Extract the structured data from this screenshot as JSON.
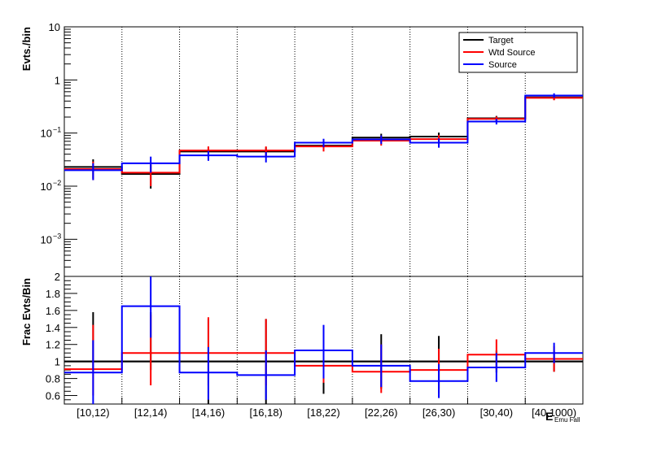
{
  "chart_data": [
    {
      "type": "line",
      "panel": "top",
      "ylabel": "Evts./bin",
      "yscale": "log",
      "ylim": [
        0.0002,
        10
      ],
      "y_ticks": [
        {
          "v": 10,
          "label": "10"
        },
        {
          "v": 1,
          "label": "1"
        },
        {
          "v": 0.1,
          "label": "10",
          "exp": "−1"
        },
        {
          "v": 0.01,
          "label": "10",
          "exp": "−2"
        },
        {
          "v": 0.001,
          "label": "10",
          "exp": "−3"
        }
      ],
      "grid": "vertical dotted at bin edges",
      "legend_placement": "top-right",
      "legend": [
        "Target",
        "Wtd Source",
        "Source"
      ],
      "series": [
        {
          "name": "Target",
          "color": "#000000",
          "values": [
            0.023,
            0.017,
            0.045,
            0.045,
            0.058,
            0.082,
            0.086,
            0.19,
            0.47
          ],
          "err": [
            0.009,
            0.008,
            0.009,
            0.009,
            0.012,
            0.015,
            0.016,
            0.02,
            0.05
          ]
        },
        {
          "name": "Wtd Source",
          "color": "#ff0000",
          "values": [
            0.021,
            0.018,
            0.047,
            0.047,
            0.056,
            0.072,
            0.077,
            0.185,
            0.46
          ],
          "err": [
            0.008,
            0.008,
            0.009,
            0.009,
            0.011,
            0.014,
            0.015,
            0.02,
            0.045
          ]
        },
        {
          "name": "Source",
          "color": "#0000ff",
          "values": [
            0.02,
            0.027,
            0.038,
            0.036,
            0.066,
            0.076,
            0.066,
            0.165,
            0.51
          ],
          "err": [
            0.007,
            0.009,
            0.008,
            0.008,
            0.012,
            0.014,
            0.013,
            0.02,
            0.05
          ]
        }
      ]
    },
    {
      "type": "line",
      "panel": "bottom",
      "ylabel": "Frac Evts/Bin",
      "ylim": [
        0.5,
        2.0
      ],
      "y_ticks": [
        {
          "v": 0.6,
          "label": "0.6"
        },
        {
          "v": 0.8,
          "label": "0.8"
        },
        {
          "v": 1.0,
          "label": "1"
        },
        {
          "v": 1.2,
          "label": "1.2"
        },
        {
          "v": 1.4,
          "label": "1.4"
        },
        {
          "v": 1.6,
          "label": "1.6"
        },
        {
          "v": 1.8,
          "label": "1.8"
        },
        {
          "v": 2.0,
          "label": "2"
        }
      ],
      "reference_line": 1,
      "categories": [
        "[10,12)",
        "[12,14)",
        "[14,16)",
        "[16,18)",
        "[18,22)",
        "[22,26)",
        "[26,30)",
        "[30,40)",
        "[40,1000)"
      ],
      "xlabel": "E",
      "xlabel_sub": "Emu Fall",
      "series": [
        {
          "name": "Target",
          "color": "#000000",
          "values": [
            1.0,
            1.0,
            1.0,
            1.0,
            1.0,
            1.0,
            1.0,
            1.0,
            1.0
          ],
          "err_lo": [
            0.9,
            0.9,
            0.5,
            0.5,
            0.62,
            0.68,
            0.68,
            0.87,
            0.88
          ],
          "err_hi": [
            1.58,
            1.58,
            1.5,
            1.5,
            1.38,
            1.32,
            1.3,
            1.13,
            1.12
          ]
        },
        {
          "name": "Wtd Source",
          "color": "#ff0000",
          "values": [
            0.91,
            1.1,
            1.1,
            1.1,
            0.95,
            0.88,
            0.9,
            1.08,
            1.03
          ],
          "err_lo": [
            0.6,
            0.72,
            0.72,
            0.72,
            0.75,
            0.63,
            0.63,
            0.9,
            0.88
          ],
          "err_hi": [
            1.43,
            1.55,
            1.52,
            1.5,
            1.16,
            1.2,
            1.15,
            1.26,
            1.18
          ]
        },
        {
          "name": "Source",
          "color": "#0000ff",
          "values": [
            0.87,
            1.65,
            0.87,
            0.84,
            1.13,
            0.95,
            0.77,
            0.93,
            1.1
          ],
          "err_lo": [
            0.5,
            1.28,
            0.55,
            0.55,
            0.8,
            0.7,
            0.57,
            0.76,
            0.98
          ],
          "err_hi": [
            1.25,
            2.0,
            1.17,
            1.13,
            1.43,
            1.2,
            0.97,
            1.1,
            1.22
          ]
        }
      ]
    }
  ]
}
